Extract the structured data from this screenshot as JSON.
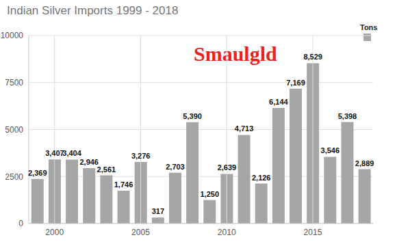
{
  "chart_data": {
    "type": "bar",
    "title": "Indian Silver Imports 1999 - 2018",
    "annotations": [
      "Smaulgld"
    ],
    "categories": [
      null,
      "2000",
      null,
      null,
      null,
      null,
      "2005",
      null,
      null,
      null,
      null,
      "2010",
      null,
      null,
      null,
      null,
      "2015",
      null,
      null,
      null
    ],
    "series": [
      {
        "name": "Tons",
        "color": "#a6a6a6",
        "values": [
          2369,
          3407,
          3404,
          2946,
          2561,
          1746,
          3276,
          317,
          2703,
          5390,
          1250,
          2639,
          4713,
          2126,
          6144,
          7169,
          8529,
          3546,
          5398,
          2889
        ],
        "value_labels": [
          "2,369",
          "3,407",
          "3,404",
          "2,946",
          "2,561",
          "1,746",
          "3,276",
          "317",
          "2,703",
          "5,390",
          "1,250",
          "2,639",
          "4,713",
          "2,126",
          "6,144",
          "7,169",
          "8,529",
          "3,546",
          "5,398",
          "2,889"
        ]
      }
    ],
    "ylim": [
      0,
      10000
    ],
    "yticks": [
      0,
      2500,
      5000,
      7500,
      10000
    ],
    "grid": true,
    "legend": "top-right",
    "data_labels": true
  }
}
